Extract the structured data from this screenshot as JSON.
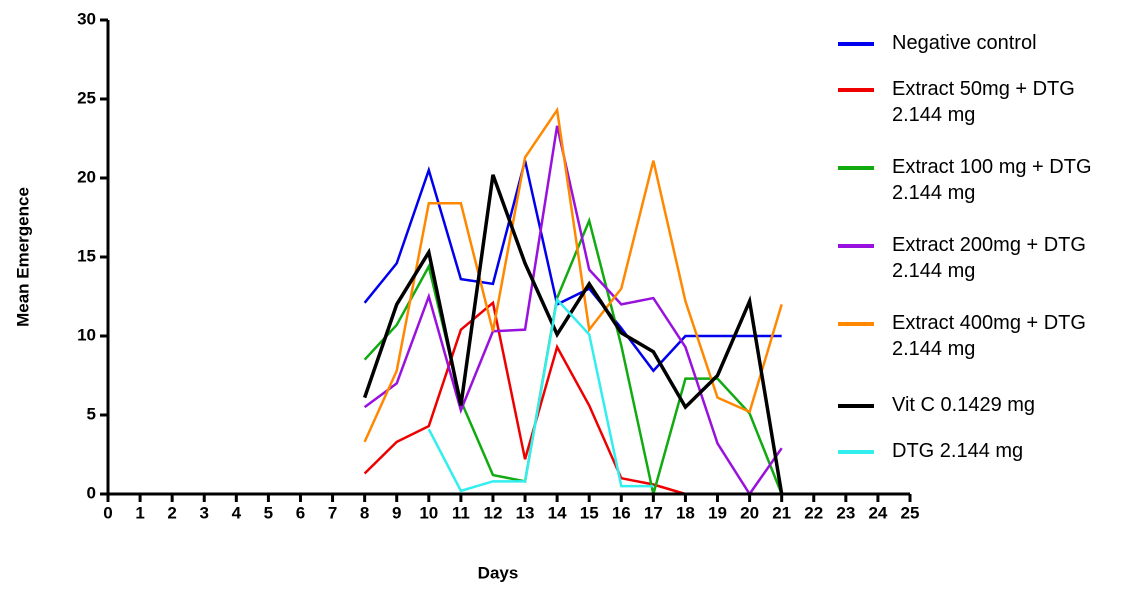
{
  "chart_data": {
    "type": "line",
    "x_label": "Days",
    "y_label": "Mean Emergence",
    "x": [
      8,
      9,
      10,
      11,
      12,
      13,
      14,
      15,
      16,
      17,
      18,
      19,
      20,
      21
    ],
    "series": [
      {
        "name": "Negative control",
        "color": "#0000ee",
        "values": [
          12.1,
          14.6,
          20.5,
          13.6,
          13.3,
          21.1,
          12.0,
          13.0,
          10.5,
          7.8,
          10,
          10,
          10,
          10
        ]
      },
      {
        "name": "Extract 50mg + DTG 2.144 mg",
        "color": "#ee0000",
        "values": [
          1.3,
          3.3,
          4.3,
          10.4,
          12.1,
          2.2,
          9.3,
          5.6,
          1.0,
          0.6,
          0,
          null,
          null,
          null
        ]
      },
      {
        "name": "Extract 100 mg + DTG 2.144 mg",
        "color": "#11aa11",
        "values": [
          8.5,
          10.7,
          14.4,
          5.9,
          1.2,
          0.8,
          12.4,
          17.3,
          9.4,
          0,
          7.3,
          7.3,
          5.1,
          0
        ]
      },
      {
        "name": "Extract 200mg + DTG 2.144 mg",
        "color": "#9911dd",
        "values": [
          5.5,
          7.0,
          12.5,
          5.3,
          10.3,
          10.4,
          23.3,
          14.2,
          12.0,
          12.4,
          9.3,
          3.2,
          0,
          2.9
        ]
      },
      {
        "name": "Extract 400mg + DTG 2.144 mg",
        "color": "#ff8800",
        "values": [
          3.3,
          7.8,
          18.4,
          18.4,
          10.3,
          21.3,
          24.3,
          10.4,
          13.0,
          21.1,
          12.2,
          6.1,
          5.2,
          12.0
        ]
      },
      {
        "name": "Vit C 0.1429 mg",
        "color": "#000000",
        "values": [
          6.1,
          12.0,
          15.3,
          5.6,
          20.2,
          14.6,
          10.1,
          13.3,
          10.2,
          9.0,
          5.5,
          7.5,
          12.2,
          0
        ]
      },
      {
        "name": "DTG 2.144 mg",
        "color": "#33eeee",
        "values": [
          null,
          null,
          4.1,
          0.2,
          0.8,
          0.8,
          12.3,
          10.1,
          0.5,
          0.5,
          null,
          null,
          null,
          null
        ]
      }
    ],
    "xlim": [
      0,
      25
    ],
    "xticks": [
      0,
      1,
      2,
      3,
      4,
      5,
      6,
      7,
      8,
      9,
      10,
      11,
      12,
      13,
      14,
      15,
      16,
      17,
      18,
      19,
      20,
      21,
      22,
      23,
      24,
      25
    ],
    "ylim": [
      0,
      30
    ],
    "yticks": [
      0,
      5,
      10,
      15,
      20,
      25,
      30
    ],
    "grid": false,
    "legend": "right"
  }
}
